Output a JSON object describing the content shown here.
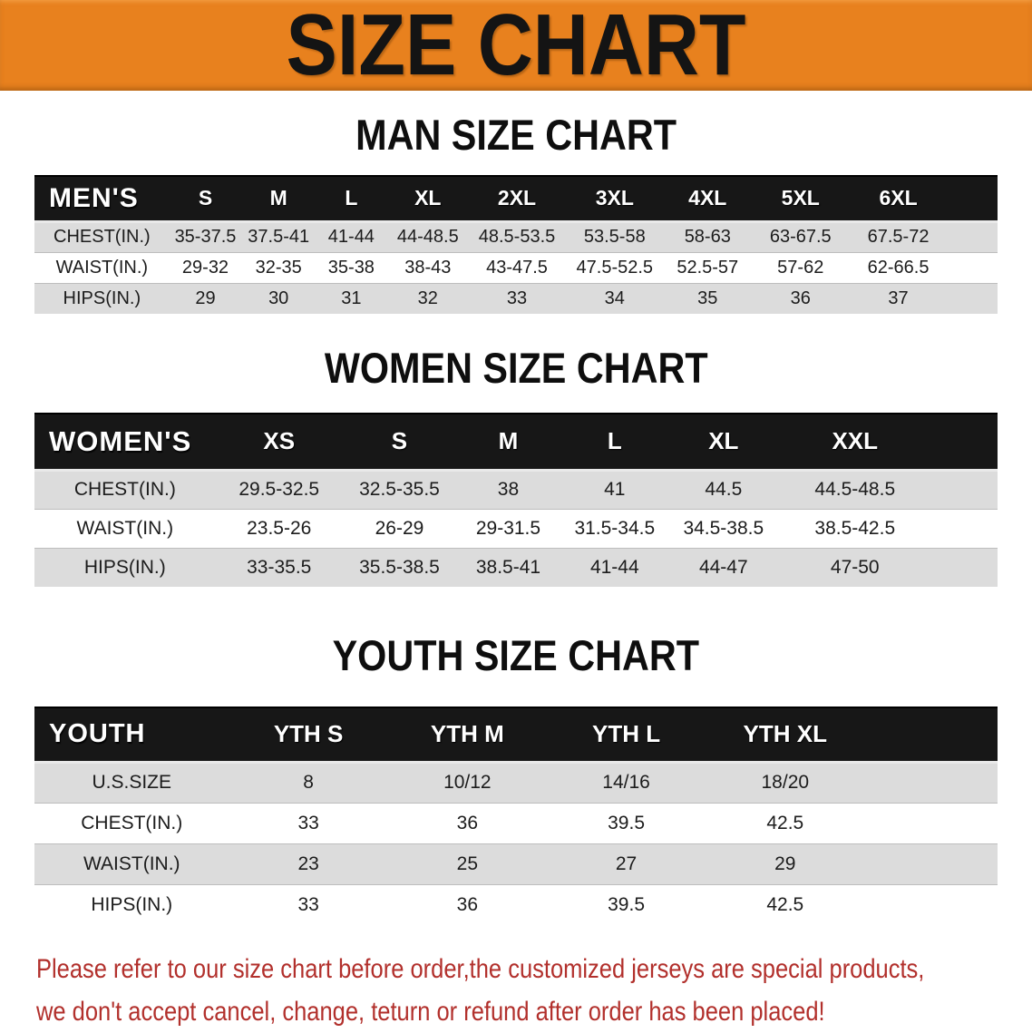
{
  "banner": {
    "title": "SIZE CHART",
    "bg_color": "#e8811e",
    "text_color": "#141414"
  },
  "sections": [
    {
      "heading": "MAN SIZE CHART",
      "header_label": "MEN'S",
      "columns": [
        "S",
        "M",
        "L",
        "XL",
        "2XL",
        "3XL",
        "4XL",
        "5XL",
        "6XL"
      ],
      "rows": [
        {
          "label": "CHEST(IN.)",
          "values": [
            "35-37.5",
            "37.5-41",
            "41-44",
            "44-48.5",
            "48.5-53.5",
            "53.5-58",
            "58-63",
            "63-67.5",
            "67.5-72"
          ]
        },
        {
          "label": "WAIST(IN.)",
          "values": [
            "29-32",
            "32-35",
            "35-38",
            "38-43",
            "43-47.5",
            "47.5-52.5",
            "52.5-57",
            "57-62",
            "62-66.5"
          ]
        },
        {
          "label": "HIPS(IN.)",
          "values": [
            "29",
            "30",
            "31",
            "32",
            "33",
            "34",
            "35",
            "36",
            "37"
          ]
        }
      ]
    },
    {
      "heading": "WOMEN SIZE CHART",
      "header_label": "WOMEN'S",
      "columns": [
        "XS",
        "S",
        "M",
        "L",
        "XL",
        "XXL"
      ],
      "rows": [
        {
          "label": "CHEST(IN.)",
          "values": [
            "29.5-32.5",
            "32.5-35.5",
            "38",
            "41",
            "44.5",
            "44.5-48.5"
          ]
        },
        {
          "label": "WAIST(IN.)",
          "values": [
            "23.5-26",
            "26-29",
            "29-31.5",
            "31.5-34.5",
            "34.5-38.5",
            "38.5-42.5"
          ]
        },
        {
          "label": "HIPS(IN.)",
          "values": [
            "33-35.5",
            "35.5-38.5",
            "38.5-41",
            "41-44",
            "44-47",
            "47-50"
          ]
        }
      ]
    },
    {
      "heading": "YOUTH SIZE CHART",
      "header_label": "YOUTH",
      "columns": [
        "YTH S",
        "YTH M",
        "YTH L",
        "YTH XL"
      ],
      "rows": [
        {
          "label": "U.S.SIZE",
          "values": [
            "8",
            "10/12",
            "14/16",
            "18/20"
          ]
        },
        {
          "label": "CHEST(IN.)",
          "values": [
            "33",
            "36",
            "39.5",
            "42.5"
          ]
        },
        {
          "label": "WAIST(IN.)",
          "values": [
            "23",
            "25",
            "27",
            "29"
          ]
        },
        {
          "label": "HIPS(IN.)",
          "values": [
            "33",
            "36",
            "39.5",
            "42.5"
          ]
        }
      ]
    }
  ],
  "disclaimer": {
    "line1": "Please refer to our size chart before order,the customized jerseys are special products,",
    "line2": "we don't accept cancel, change, teturn or refund after order has been placed!",
    "text_color": "#b2302c"
  },
  "colors": {
    "banner_orange": "#e8811e",
    "header_bar_black": "#171717",
    "stripe_gray": "#dcdcdc",
    "disclaimer_red": "#b2302c"
  }
}
